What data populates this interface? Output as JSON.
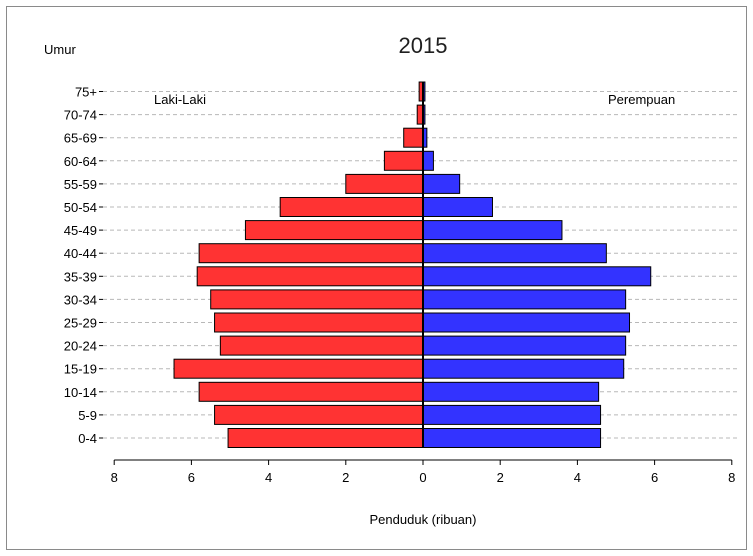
{
  "chart_data": {
    "type": "bar",
    "orientation": "horizontal",
    "subtype": "population-pyramid",
    "title": "2015",
    "y_axis_title": "Umur",
    "xlabel": "Penduduk (ribuan)",
    "left_label": "Laki-Laki",
    "right_label": "Perempuan",
    "xlim": [
      -8,
      8
    ],
    "x_ticks": [
      -8,
      -6,
      -4,
      -2,
      0,
      2,
      4,
      6,
      8
    ],
    "x_tick_labels": [
      "8",
      "6",
      "4",
      "2",
      "0",
      "2",
      "4",
      "6",
      "8"
    ],
    "grid": "horizontal dashed",
    "categories": [
      "0-4",
      "5-9",
      "10-14",
      "15-19",
      "20-24",
      "25-29",
      "30-34",
      "35-39",
      "40-44",
      "45-49",
      "50-54",
      "55-59",
      "60-64",
      "65-69",
      "70-74",
      "75+"
    ],
    "series": [
      {
        "name": "Laki-Laki",
        "color": "#ff3333",
        "values": [
          5.05,
          5.4,
          5.8,
          6.45,
          5.25,
          5.4,
          5.5,
          5.85,
          5.8,
          4.6,
          3.7,
          2.0,
          1.0,
          0.5,
          0.15,
          0.1
        ]
      },
      {
        "name": "Perempuan",
        "color": "#3333ff",
        "values": [
          4.6,
          4.6,
          4.55,
          5.2,
          5.25,
          5.35,
          5.25,
          5.9,
          4.75,
          3.6,
          1.8,
          0.95,
          0.27,
          0.1,
          0.05,
          0.05
        ]
      }
    ]
  }
}
